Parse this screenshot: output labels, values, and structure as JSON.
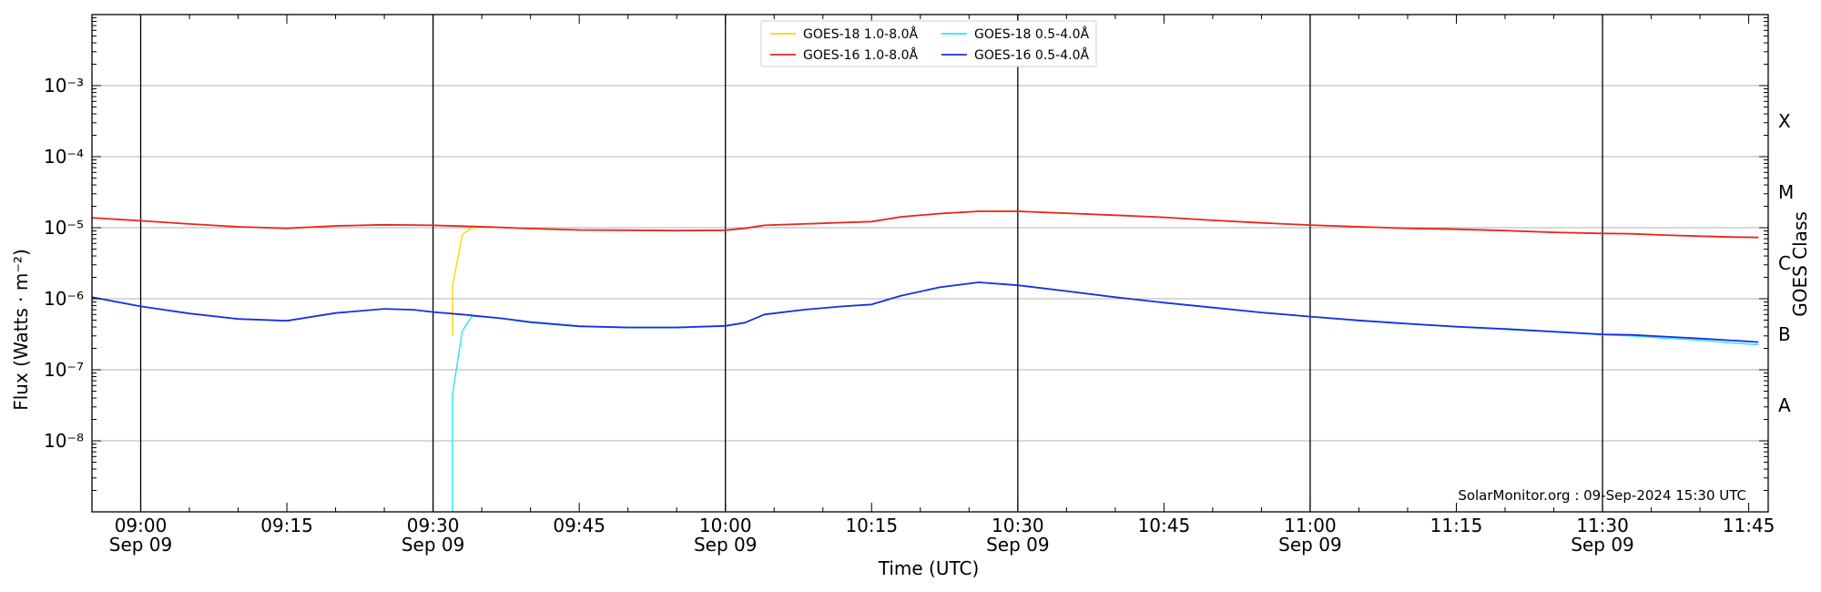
{
  "chart_data": {
    "type": "line",
    "ylabel": "Flux (Watts · m⁻²)",
    "xlabel": "Time (UTC)",
    "right_axis_label": "GOES Class",
    "y_scale": "log",
    "ylim": [
      1e-09,
      0.01
    ],
    "xlim": [
      "08:55",
      "11:47"
    ],
    "y_ticks": [
      {
        "value": 1e-08,
        "label": "10⁻⁸"
      },
      {
        "value": 1e-07,
        "label": "10⁻⁷"
      },
      {
        "value": 1e-06,
        "label": "10⁻⁶"
      },
      {
        "value": 1e-05,
        "label": "10⁻⁵"
      },
      {
        "value": 0.0001,
        "label": "10⁻⁴"
      },
      {
        "value": 0.001,
        "label": "10⁻³"
      }
    ],
    "x_ticks": [
      {
        "time": "09:00",
        "label": "09:00",
        "sub": "Sep 09"
      },
      {
        "time": "09:15",
        "label": "09:15",
        "sub": ""
      },
      {
        "time": "09:30",
        "label": "09:30",
        "sub": "Sep 09"
      },
      {
        "time": "09:45",
        "label": "09:45",
        "sub": ""
      },
      {
        "time": "10:00",
        "label": "10:00",
        "sub": "Sep 09"
      },
      {
        "time": "10:15",
        "label": "10:15",
        "sub": ""
      },
      {
        "time": "10:30",
        "label": "10:30",
        "sub": "Sep 09"
      },
      {
        "time": "10:45",
        "label": "10:45",
        "sub": ""
      },
      {
        "time": "11:00",
        "label": "11:00",
        "sub": "Sep 09"
      },
      {
        "time": "11:15",
        "label": "11:15",
        "sub": ""
      },
      {
        "time": "11:30",
        "label": "11:30",
        "sub": "Sep 09"
      },
      {
        "time": "11:45",
        "label": "11:45",
        "sub": ""
      }
    ],
    "vertical_lines": [
      "09:00",
      "09:30",
      "10:00",
      "10:30",
      "11:00",
      "11:30"
    ],
    "goes_classes": [
      {
        "label": "A",
        "low": 1e-08,
        "high": 1e-07
      },
      {
        "label": "B",
        "low": 1e-07,
        "high": 1e-06
      },
      {
        "label": "C",
        "low": 1e-06,
        "high": 1e-05
      },
      {
        "label": "M",
        "low": 1e-05,
        "high": 0.0001
      },
      {
        "label": "X",
        "low": 0.0001,
        "high": 0.001
      }
    ],
    "grid": true,
    "legend_position": "top-center",
    "annotation": "SolarMonitor.org : 09-Sep-2024 15:30 UTC",
    "series": [
      {
        "name": "GOES-18 1.0-8.0Å",
        "color": "#ffd700",
        "x": [
          "09:32",
          "09:32",
          "09:33",
          "09:34",
          "09:36",
          "09:40",
          "09:45",
          "09:50",
          "09:55",
          "10:00",
          "10:02",
          "10:04",
          "10:08",
          "10:12",
          "10:15",
          "10:18",
          "10:22",
          "10:26",
          "10:30",
          "10:35",
          "10:40",
          "10:45",
          "10:50",
          "10:55",
          "11:00",
          "11:05",
          "11:10",
          "11:15",
          "11:20",
          "11:25",
          "11:30",
          "11:33",
          "11:36",
          "11:40",
          "11:43",
          "11:46"
        ],
        "y": [
          3e-07,
          1.5e-06,
          8e-06,
          1e-05,
          1.02e-05,
          9.7e-06,
          9.3e-06,
          9.2e-06,
          9.1e-06,
          9.2e-06,
          9.8e-06,
          1.08e-05,
          1.13e-05,
          1.18e-05,
          1.22e-05,
          1.42e-05,
          1.58e-05,
          1.7e-05,
          1.7e-05,
          1.6e-05,
          1.5e-05,
          1.4e-05,
          1.27e-05,
          1.17e-05,
          1.09e-05,
          1.03e-05,
          9.8e-06,
          9.5e-06,
          9.1e-06,
          8.6e-06,
          8.3e-06,
          8.2e-06,
          7.9e-06,
          7.6e-06,
          7.4e-06,
          7.3e-06
        ]
      },
      {
        "name": "GOES-16 1.0-8.0Å",
        "color": "#e8251f",
        "x": [
          "08:55",
          "09:00",
          "09:05",
          "09:10",
          "09:15",
          "09:20",
          "09:25",
          "09:28",
          "09:30",
          "09:33",
          "09:36",
          "09:40",
          "09:45",
          "09:50",
          "09:55",
          "10:00",
          "10:02",
          "10:04",
          "10:08",
          "10:12",
          "10:15",
          "10:18",
          "10:22",
          "10:26",
          "10:30",
          "10:35",
          "10:40",
          "10:45",
          "10:50",
          "10:55",
          "11:00",
          "11:05",
          "11:10",
          "11:15",
          "11:20",
          "11:25",
          "11:30",
          "11:33",
          "11:36",
          "11:40",
          "11:43",
          "11:46"
        ],
        "y": [
          1.38e-05,
          1.25e-05,
          1.13e-05,
          1.03e-05,
          9.8e-06,
          1.06e-05,
          1.1e-05,
          1.09e-05,
          1.08e-05,
          1.05e-05,
          1.02e-05,
          9.7e-06,
          9.3e-06,
          9.2e-06,
          9.1e-06,
          9.2e-06,
          9.8e-06,
          1.08e-05,
          1.13e-05,
          1.18e-05,
          1.22e-05,
          1.42e-05,
          1.58e-05,
          1.7e-05,
          1.7e-05,
          1.6e-05,
          1.5e-05,
          1.4e-05,
          1.27e-05,
          1.17e-05,
          1.09e-05,
          1.03e-05,
          9.8e-06,
          9.5e-06,
          9.1e-06,
          8.6e-06,
          8.3e-06,
          8.2e-06,
          7.9e-06,
          7.6e-06,
          7.4e-06,
          7.3e-06
        ]
      },
      {
        "name": "GOES-18 0.5-4.0Å",
        "color": "#28e8ec",
        "x": [
          "09:32",
          "09:32",
          "09:33",
          "09:34",
          "09:37",
          "09:40",
          "09:45",
          "09:50",
          "09:55",
          "10:00",
          "10:02",
          "10:04",
          "10:08",
          "10:12",
          "10:15",
          "10:18",
          "10:22",
          "10:26",
          "10:30",
          "10:35",
          "10:40",
          "10:45",
          "10:50",
          "10:55",
          "11:00",
          "11:05",
          "11:10",
          "11:15",
          "11:20",
          "11:25",
          "11:30",
          "11:33",
          "11:36",
          "11:40",
          "11:43",
          "11:46"
        ],
        "y": [
          1e-09,
          4.5e-08,
          3.5e-07,
          5.7e-07,
          5.3e-07,
          4.6e-07,
          4.05e-07,
          3.9e-07,
          3.9e-07,
          4.1e-07,
          4.6e-07,
          6e-07,
          7e-07,
          7.8e-07,
          8.3e-07,
          1.1e-06,
          1.45e-06,
          1.7e-06,
          1.55e-06,
          1.28e-06,
          1.05e-06,
          8.8e-07,
          7.5e-07,
          6.4e-07,
          5.6e-07,
          4.9e-07,
          4.4e-07,
          4e-07,
          3.7e-07,
          3.4e-07,
          3.1e-07,
          3e-07,
          2.8e-07,
          2.6e-07,
          2.4e-07,
          2.25e-07
        ]
      },
      {
        "name": "GOES-16 0.5-4.0Å",
        "color": "#1a2ee6",
        "x": [
          "08:55",
          "09:00",
          "09:05",
          "09:10",
          "09:15",
          "09:20",
          "09:25",
          "09:28",
          "09:30",
          "09:33",
          "09:37",
          "09:40",
          "09:45",
          "09:50",
          "09:55",
          "10:00",
          "10:02",
          "10:04",
          "10:08",
          "10:12",
          "10:15",
          "10:18",
          "10:22",
          "10:26",
          "10:30",
          "10:35",
          "10:40",
          "10:45",
          "10:50",
          "10:55",
          "11:00",
          "11:05",
          "11:10",
          "11:15",
          "11:20",
          "11:25",
          "11:30",
          "11:33",
          "11:36",
          "11:40",
          "11:43",
          "11:46"
        ],
        "y": [
          1.05e-06,
          7.8e-07,
          6.2e-07,
          5.2e-07,
          4.9e-07,
          6.3e-07,
          7.2e-07,
          7e-07,
          6.5e-07,
          6e-07,
          5.3e-07,
          4.7e-07,
          4.1e-07,
          3.95e-07,
          3.95e-07,
          4.15e-07,
          4.6e-07,
          6e-07,
          7e-07,
          7.8e-07,
          8.3e-07,
          1.1e-06,
          1.45e-06,
          1.7e-06,
          1.55e-06,
          1.28e-06,
          1.05e-06,
          8.8e-07,
          7.5e-07,
          6.4e-07,
          5.6e-07,
          4.95e-07,
          4.45e-07,
          4.05e-07,
          3.75e-07,
          3.45e-07,
          3.15e-07,
          3.1e-07,
          2.95e-07,
          2.75e-07,
          2.6e-07,
          2.45e-07
        ]
      }
    ]
  }
}
